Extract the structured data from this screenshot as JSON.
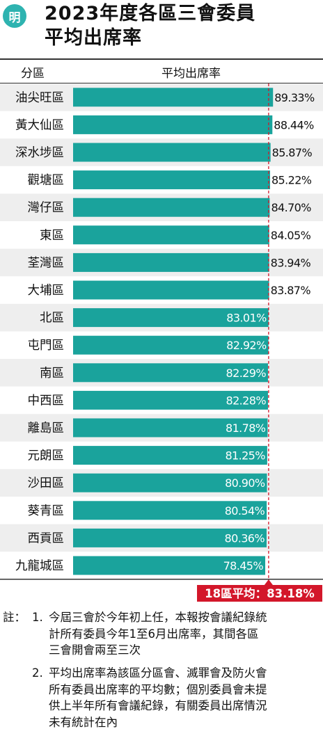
{
  "brand": {
    "logo_text": "明"
  },
  "title_lines": [
    "2023年度各區三會委員",
    "平均出席率"
  ],
  "header": {
    "district": "分區",
    "rate": "平均出席率"
  },
  "colors": {
    "bar": "#1aa39c",
    "average_line": "#d3172a",
    "stripe": "#eeeeee"
  },
  "chart_data": {
    "type": "bar",
    "orientation": "horizontal",
    "categories": [
      "油尖旺區",
      "黃大仙區",
      "深水埗區",
      "觀塘區",
      "灣仔區",
      "東區",
      "荃灣區",
      "大埔區",
      "北區",
      "屯門區",
      "南區",
      "中西區",
      "離島區",
      "元朗區",
      "沙田區",
      "葵青區",
      "西貢區",
      "九龍城區"
    ],
    "values": [
      89.33,
      88.44,
      85.87,
      85.22,
      84.7,
      84.05,
      83.94,
      83.87,
      83.01,
      82.92,
      82.29,
      82.28,
      81.78,
      81.25,
      80.9,
      80.54,
      80.36,
      78.45
    ],
    "value_labels": [
      "89.33%",
      "88.44%",
      "85.87%",
      "85.22%",
      "84.70%",
      "84.05%",
      "83.94%",
      "83.87%",
      "83.01%",
      "82.92%",
      "82.29%",
      "82.28%",
      "81.78%",
      "81.25%",
      "80.90%",
      "80.54%",
      "80.36%",
      "78.45%"
    ],
    "unit": "%",
    "average": 83.18,
    "average_label": "18區平均：83.18%"
  },
  "footnote": {
    "prefix": "註：",
    "notes": [
      {
        "number": "1.",
        "lines": [
          "今屆三會於今年初上任，本報按會議紀錄統",
          "計所有委員今年1至6月出席率，其間各區",
          "三會開會兩至三次"
        ]
      },
      {
        "number": "2.",
        "lines": [
          "平均出席率為該區分區會、滅罪會及防火會",
          "所有委員出席率的平均數；個別委員會未提",
          "供上半年所有會議紀錄，有關委員出席情況",
          "未有統計在內"
        ]
      }
    ]
  }
}
